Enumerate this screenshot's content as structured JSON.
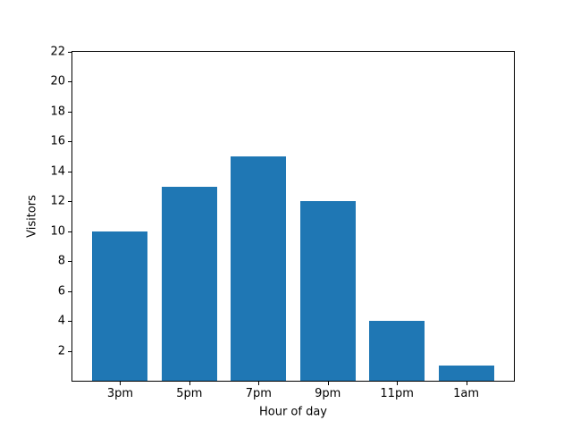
{
  "chart_data": {
    "type": "bar",
    "categories": [
      "3pm",
      "5pm",
      "7pm",
      "9pm",
      "11pm",
      "1am"
    ],
    "values": [
      10,
      13,
      15,
      12,
      4,
      1
    ],
    "title": "",
    "xlabel": "Hour of day",
    "ylabel": "Visitors",
    "ylim": [
      0,
      22
    ],
    "yticks": [
      2,
      4,
      6,
      8,
      10,
      12,
      14,
      16,
      18,
      20,
      22
    ],
    "bar_width": 0.8,
    "grid": false,
    "legend": false,
    "colors": {
      "bar": "#1f77b4",
      "axis": "#000000",
      "text": "#000000",
      "background": "#ffffff"
    }
  }
}
